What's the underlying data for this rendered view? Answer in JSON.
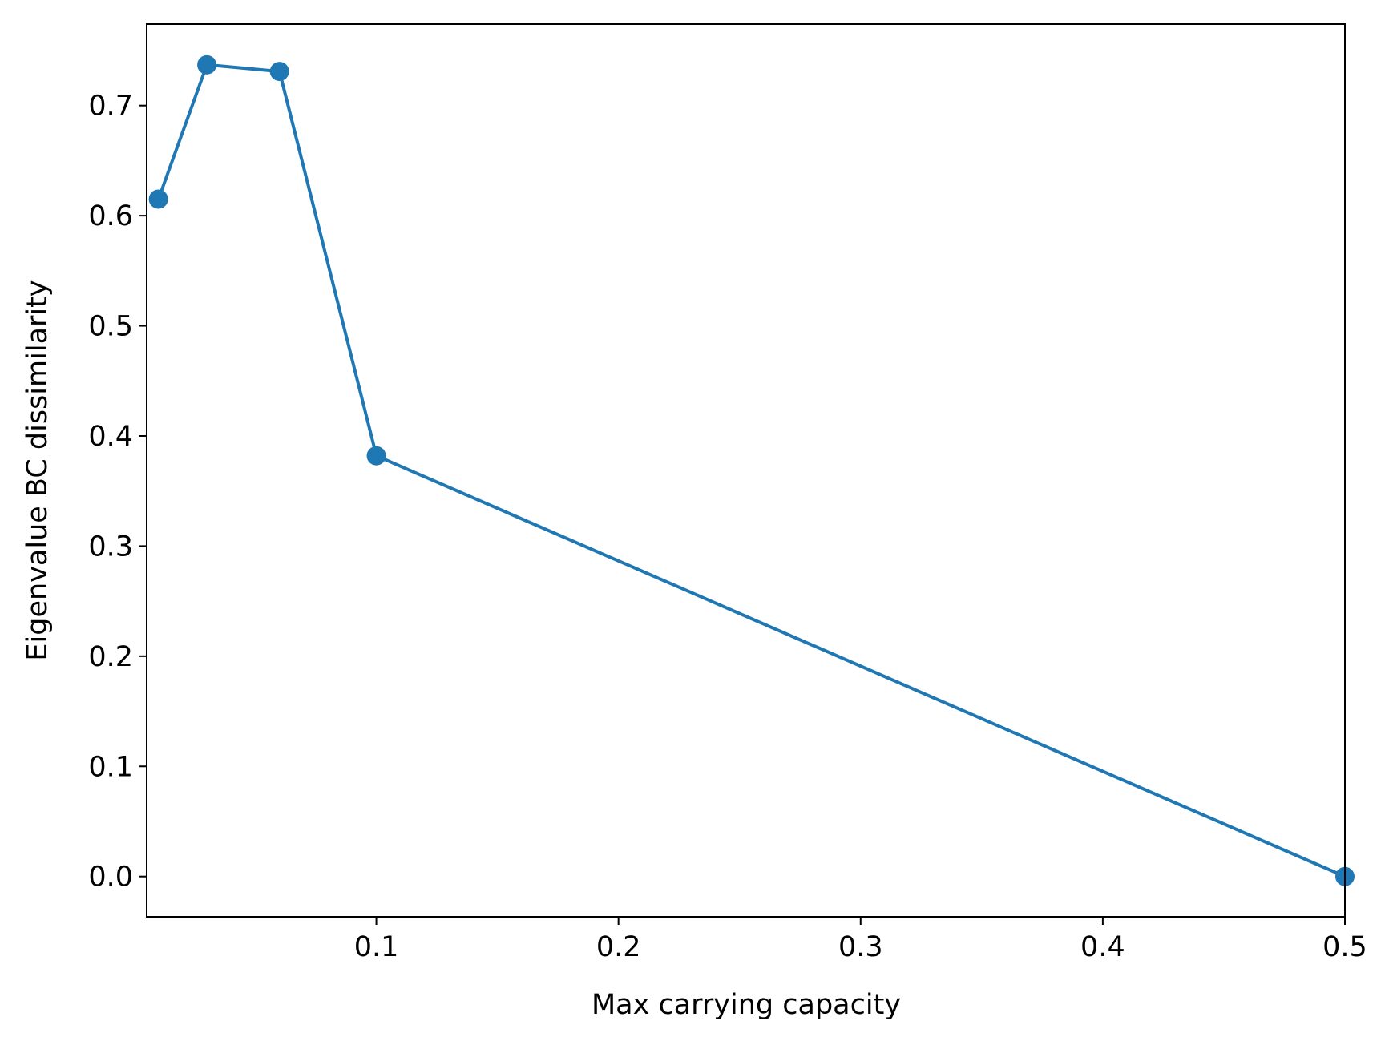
{
  "chart_data": {
    "type": "line",
    "xlabel": "Max carrying capacity",
    "ylabel": "Eigenvalue BC dissimilarity",
    "x_ticks": [
      {
        "value": 0.1,
        "label": "0.1"
      },
      {
        "value": 0.2,
        "label": "0.2"
      },
      {
        "value": 0.3,
        "label": "0.3"
      },
      {
        "value": 0.4,
        "label": "0.4"
      },
      {
        "value": 0.5,
        "label": "0.5"
      }
    ],
    "y_ticks": [
      {
        "value": 0.0,
        "label": "0.0"
      },
      {
        "value": 0.1,
        "label": "0.1"
      },
      {
        "value": 0.2,
        "label": "0.2"
      },
      {
        "value": 0.3,
        "label": "0.3"
      },
      {
        "value": 0.4,
        "label": "0.4"
      },
      {
        "value": 0.5,
        "label": "0.5"
      },
      {
        "value": 0.6,
        "label": "0.6"
      },
      {
        "value": 0.7,
        "label": "0.7"
      }
    ],
    "series": [
      {
        "color": "#1f77b4",
        "marker": "circle",
        "points": [
          {
            "x": 0.01,
            "y": 0.615
          },
          {
            "x": 0.03,
            "y": 0.737
          },
          {
            "x": 0.06,
            "y": 0.731
          },
          {
            "x": 0.1,
            "y": 0.382
          },
          {
            "x": 0.5,
            "y": 0.0
          }
        ]
      }
    ],
    "grid": false,
    "legend": "none"
  }
}
